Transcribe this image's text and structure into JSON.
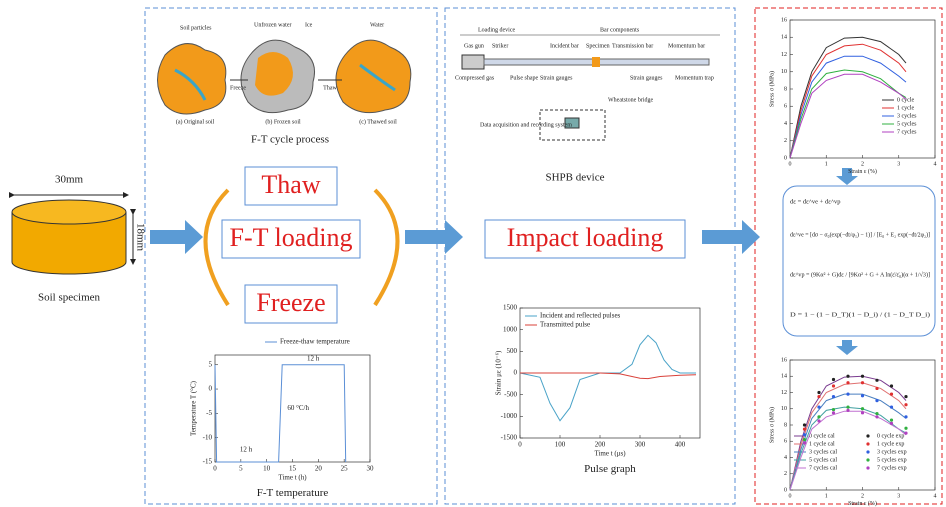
{
  "specimen": {
    "diameter": "30mm",
    "height": "18mm",
    "label": "Soil specimen"
  },
  "ft_panel": {
    "soil_labels": {
      "particles": "Soil particles",
      "unfrozen": "Unfrozen water",
      "ice": "Ice",
      "water": "Water",
      "freeze": "Freeze",
      "thaw": "Thaw",
      "a": "(a) Original soil",
      "b": "(b) Frozen soil",
      "c": "(c) Thawed soil"
    },
    "process_title": "F-T cycle process",
    "thaw": "Thaw",
    "loading": "F-T loading",
    "freeze": "Freeze",
    "temperature_chart": {
      "title": "F-T temperature",
      "ylabel": "Temperature T (°C)",
      "xlabel": "Time t (h)",
      "xlim": [
        0,
        30
      ],
      "ylim": [
        -15,
        7
      ],
      "xticks": [
        0,
        5,
        10,
        15,
        20,
        25,
        30
      ],
      "yticks": [
        -15,
        -10,
        -5,
        0,
        5
      ],
      "series": [
        {
          "name": "Freeze-thaw temperature",
          "color": "#5b8fd6",
          "x": [
            0,
            0.3,
            12.3,
            13,
            25,
            25.3
          ],
          "values": [
            5,
            -15,
            -15,
            5,
            5,
            -15
          ]
        }
      ],
      "annotations": {
        "low": "12 h",
        "high": "12 h",
        "rate": "60 °C/h"
      }
    }
  },
  "shpb_panel": {
    "device_labels": {
      "loading": "Loading device",
      "bars": "Bar components",
      "gas_gun": "Gas gun",
      "striker": "Striker",
      "incident": "Incident bar",
      "specimen": "Specimen",
      "transmission": "Transmission bar",
      "momentum": "Momentum bar",
      "compressed": "Compressed gas",
      "pulse_shape": "Pulse shape",
      "gauges1": "Strain gauges",
      "gauges2": "Strain gauges",
      "bridge": "Wheatstone bridge",
      "daq": "Data acquisition and recording system",
      "trap": "Momentum trap"
    },
    "device_title": "SHPB device",
    "impact": "Impact loading",
    "pulse_chart": {
      "title": "Pulse graph",
      "ylabel": "Strain με (10⁻⁶)",
      "xlabel": "Time t (μs)",
      "xlim": [
        0,
        450
      ],
      "ylim": [
        -1500,
        1500
      ],
      "xticks": [
        0,
        100,
        200,
        300,
        400
      ],
      "yticks": [
        -1500,
        -1000,
        -500,
        0,
        500,
        1000,
        1500
      ],
      "series": [
        {
          "name": "Incident and reflected pulses",
          "color": "#4aa3c8",
          "x": [
            0,
            50,
            75,
            100,
            125,
            150,
            200,
            250,
            280,
            300,
            320,
            340,
            360,
            380,
            400,
            440
          ],
          "values": [
            0,
            -100,
            -700,
            -1100,
            -800,
            -150,
            0,
            0,
            200,
            650,
            870,
            700,
            300,
            80,
            0,
            0
          ]
        },
        {
          "name": "Transmitted pulse",
          "color": "#d9413a",
          "x": [
            0,
            200,
            250,
            280,
            300,
            320,
            350,
            400,
            440
          ],
          "values": [
            0,
            0,
            -20,
            -80,
            -120,
            -130,
            -80,
            -50,
            -40
          ]
        }
      ]
    }
  },
  "result_panel": {
    "stress_chart": {
      "ylabel": "Stress σ (MPa)",
      "xlabel": "Strain ε (%)",
      "xlim": [
        0,
        4
      ],
      "ylim": [
        0,
        16
      ],
      "xticks": [
        0,
        1,
        2,
        3,
        4
      ],
      "yticks": [
        0,
        2,
        4,
        6,
        8,
        10,
        12,
        14,
        16
      ],
      "x": [
        0,
        0.3,
        0.6,
        1,
        1.5,
        2,
        2.5,
        3,
        3.2
      ],
      "series": [
        {
          "name": "0 cycle",
          "color": "#333333",
          "style": "line",
          "values": [
            0,
            6,
            10,
            12.8,
            13.9,
            14,
            13.5,
            12,
            11
          ]
        },
        {
          "name": "1 cycle",
          "color": "#e03030",
          "style": "line",
          "values": [
            0,
            5.5,
            9.5,
            12,
            13,
            13.2,
            12.5,
            11,
            10
          ]
        },
        {
          "name": "3 cycles",
          "color": "#3060e0",
          "style": "line",
          "values": [
            0,
            5,
            8.8,
            11,
            11.8,
            11.8,
            11,
            9.5,
            8.8
          ]
        },
        {
          "name": "5 cycles",
          "color": "#30b040",
          "style": "line",
          "values": [
            0,
            4.5,
            8,
            9.8,
            10.2,
            10,
            9.2,
            7.5,
            7
          ]
        },
        {
          "name": "7 cycles",
          "color": "#b040c0",
          "style": "line",
          "values": [
            0,
            4,
            7.5,
            9,
            9.7,
            9.7,
            8.8,
            7.5,
            6.8
          ]
        }
      ]
    },
    "equations": [
      "dε = dε^ve + dε^vp",
      "dε^ve = [dσ − σ₀(exp(−dt/φ₁) − 1)] / [E₀ + E₂ exp(−dt/2φ₂)]",
      "dε^vp = (9Kα² + G)dε / [9Kα² + G + A ln(ε̇/ε̇₀)(α + 1/√3)]",
      "D = 1 − (1 − D_T)(1 − D_i) / (1 − D_T D_i)"
    ],
    "fit_chart": {
      "ylabel": "Stress σ (MPa)",
      "xlabel": "Strain ε (%)",
      "xlim": [
        0,
        4
      ],
      "ylim": [
        0,
        16
      ],
      "xticks": [
        0,
        1,
        2,
        3,
        4
      ],
      "yticks": [
        0,
        2,
        4,
        6,
        8,
        10,
        12,
        14,
        16
      ],
      "series": [
        {
          "name": "0 cycle cal",
          "color": "#7a3b8f",
          "style": "line",
          "x": [
            0,
            0.3,
            0.6,
            1,
            1.5,
            2,
            2.5,
            3,
            3.2
          ],
          "values": [
            0,
            6,
            10,
            12.8,
            13.9,
            14,
            13.5,
            12,
            11
          ]
        },
        {
          "name": "1 cycle cal",
          "color": "#e07070",
          "style": "line",
          "x": [
            0,
            0.3,
            0.6,
            1,
            1.5,
            2,
            2.5,
            3,
            3.2
          ],
          "values": [
            0,
            5.5,
            9.5,
            12,
            13,
            13.2,
            12.5,
            11,
            10
          ]
        },
        {
          "name": "3 cycles cal",
          "color": "#4a7fc0",
          "style": "line",
          "x": [
            0,
            0.3,
            0.6,
            1,
            1.5,
            2,
            2.5,
            3,
            3.2
          ],
          "values": [
            0,
            5,
            8.8,
            11,
            11.8,
            11.8,
            11,
            9.5,
            8.8
          ]
        },
        {
          "name": "5 cycles cal",
          "color": "#40a0a0",
          "style": "line",
          "x": [
            0,
            0.3,
            0.6,
            1,
            1.5,
            2,
            2.5,
            3,
            3.2
          ],
          "values": [
            0,
            4.5,
            8,
            9.8,
            10.2,
            10,
            9.2,
            7.5,
            7
          ]
        },
        {
          "name": "7 cycles cal",
          "color": "#c070d0",
          "style": "line",
          "x": [
            0,
            0.3,
            0.6,
            1,
            1.5,
            2,
            2.5,
            3,
            3.2
          ],
          "values": [
            0,
            4,
            7.5,
            9,
            9.7,
            9.7,
            8.8,
            7.5,
            6.8
          ]
        },
        {
          "name": "0 cycle exp",
          "color": "#222222",
          "style": "points",
          "x": [
            0.4,
            0.8,
            1.2,
            1.6,
            2,
            2.4,
            2.8,
            3.2
          ],
          "values": [
            8,
            12,
            13.6,
            14,
            14,
            13.5,
            12.8,
            11.5
          ]
        },
        {
          "name": "1 cycle exp",
          "color": "#e03030",
          "style": "points",
          "x": [
            0.4,
            0.8,
            1.2,
            1.6,
            2,
            2.4,
            2.8,
            3.2
          ],
          "values": [
            7.5,
            11.5,
            12.8,
            13.2,
            13.2,
            12.5,
            11.8,
            10.5
          ]
        },
        {
          "name": "3 cycles exp",
          "color": "#3060e0",
          "style": "points",
          "x": [
            0.4,
            0.8,
            1.2,
            1.6,
            2,
            2.4,
            2.8,
            3.2
          ],
          "values": [
            6.8,
            10.2,
            11.5,
            11.8,
            11.6,
            11,
            10.2,
            9
          ]
        },
        {
          "name": "5 cycles exp",
          "color": "#30b040",
          "style": "points",
          "x": [
            0.4,
            0.8,
            1.2,
            1.6,
            2,
            2.4,
            2.8,
            3.2
          ],
          "values": [
            6.2,
            9,
            9.9,
            10.2,
            10,
            9.4,
            8.6,
            7.6
          ]
        },
        {
          "name": "7 cycles exp",
          "color": "#b040c0",
          "style": "points",
          "x": [
            0.4,
            0.8,
            1.2,
            1.6,
            2,
            2.4,
            2.8,
            3.2
          ],
          "values": [
            5.8,
            8.5,
            9.5,
            9.8,
            9.5,
            9,
            8.2,
            7
          ]
        }
      ]
    }
  }
}
